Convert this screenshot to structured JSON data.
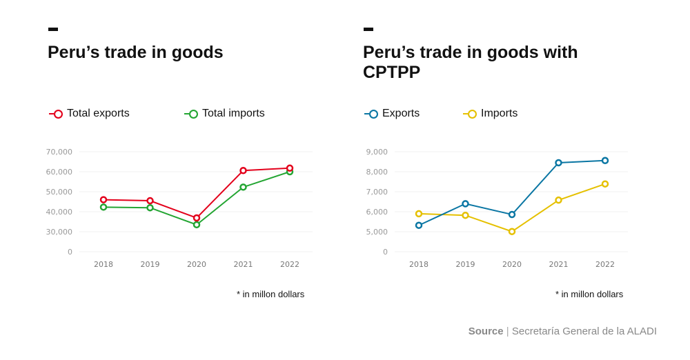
{
  "source": {
    "label": "Source",
    "separator": "|",
    "text": "Secretaría General de la ALADI"
  },
  "chart_data": [
    {
      "type": "line",
      "title": "Peru’s trade in goods",
      "note": "* in millon dollars",
      "categories": [
        "2018",
        "2019",
        "2020",
        "2021",
        "2022"
      ],
      "y_ticks": [
        0,
        30000,
        40000,
        50000,
        60000,
        70000
      ],
      "y_tick_labels": [
        "0",
        "30,000",
        "40,000",
        "50,000",
        "60,000",
        "70,000"
      ],
      "ylim": [
        0,
        70000
      ],
      "axis_break": "between 0 and 30,000",
      "grid": true,
      "legend": "top-left",
      "series": [
        {
          "name": "Total exports",
          "color": "#e3001b",
          "values": [
            46000,
            45500,
            36900,
            60600,
            61800
          ]
        },
        {
          "name": "Total imports",
          "color": "#23a532",
          "values": [
            42300,
            42000,
            33500,
            52300,
            60000
          ]
        }
      ]
    },
    {
      "type": "line",
      "title": "Peru’s trade in goods with CPTPP",
      "note": "* in millon dollars",
      "categories": [
        "2018",
        "2019",
        "2020",
        "2021",
        "2022"
      ],
      "y_ticks": [
        0,
        5000,
        6000,
        7000,
        8000,
        9000
      ],
      "y_tick_labels": [
        "0",
        "5,000",
        "6,000",
        "7,000",
        "8,000",
        "9,000"
      ],
      "ylim": [
        0,
        9000
      ],
      "axis_break": "between 0 and 5,000",
      "grid": true,
      "legend": "top-left",
      "series": [
        {
          "name": "Exports",
          "color": "#0a76a3",
          "values": [
            5320,
            6400,
            5860,
            8450,
            8560
          ]
        },
        {
          "name": "Imports",
          "color": "#e5c000",
          "values": [
            5900,
            5820,
            5010,
            6580,
            7390
          ]
        }
      ]
    }
  ]
}
